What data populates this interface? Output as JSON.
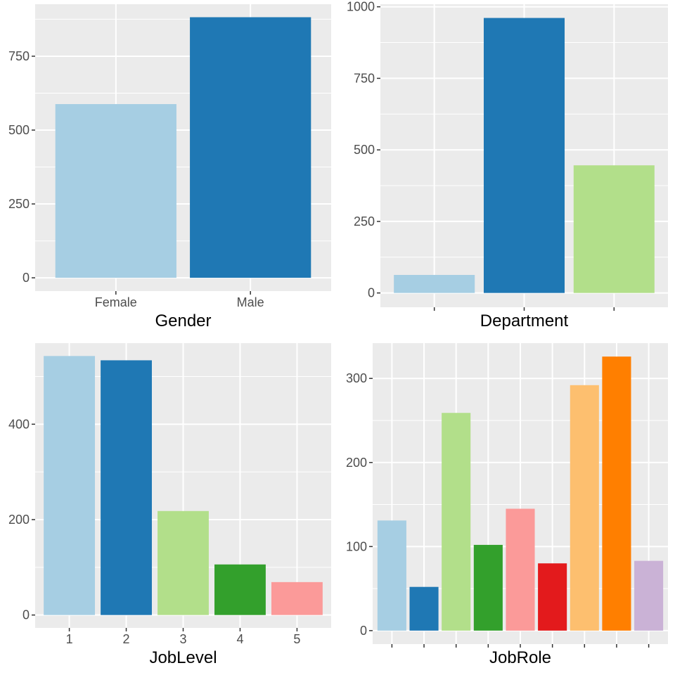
{
  "chart_data": [
    {
      "type": "bar",
      "xlabel": "Gender",
      "ylabel": "",
      "categories": [
        "Female",
        "Male"
      ],
      "show_category_labels": true,
      "values": [
        588,
        882
      ],
      "colors": [
        "#A6CEE3",
        "#1F78B4"
      ],
      "ylim": [
        -45,
        926
      ],
      "xlim": [
        0.4,
        2.6
      ],
      "yticks": [
        0,
        250,
        500,
        750
      ],
      "grid": true,
      "legend": "none"
    },
    {
      "type": "bar",
      "xlabel": "Department",
      "ylabel": "",
      "categories": [
        "",
        "",
        ""
      ],
      "show_category_labels": false,
      "values": [
        63,
        961,
        446
      ],
      "colors": [
        "#A6CEE3",
        "#1F78B4",
        "#B2DF8A"
      ],
      "ylim": [
        -50,
        1009
      ],
      "xlim": [
        0.4,
        3.6
      ],
      "yticks": [
        0,
        250,
        500,
        750,
        1000
      ],
      "grid": true,
      "legend": "none"
    },
    {
      "type": "bar",
      "xlabel": "JobLevel",
      "ylabel": "",
      "categories": [
        "1",
        "2",
        "3",
        "4",
        "5"
      ],
      "show_category_labels": true,
      "values": [
        543,
        534,
        218,
        106,
        69
      ],
      "colors": [
        "#A6CEE3",
        "#1F78B4",
        "#B2DF8A",
        "#33A02C",
        "#FB9A99"
      ],
      "ylim": [
        -27,
        570
      ],
      "xlim": [
        0.4,
        5.6
      ],
      "yticks": [
        0,
        200,
        400
      ],
      "grid": true,
      "legend": "none"
    },
    {
      "type": "bar",
      "xlabel": "JobRole",
      "ylabel": "",
      "categories": [
        "",
        "",
        "",
        "",
        "",
        "",
        "",
        "",
        ""
      ],
      "show_category_labels": false,
      "values": [
        131,
        52,
        259,
        102,
        145,
        80,
        292,
        326,
        83
      ],
      "colors": [
        "#A6CEE3",
        "#1F78B4",
        "#B2DF8A",
        "#33A02C",
        "#FB9A99",
        "#E31A1C",
        "#FDBF6F",
        "#FF7F00",
        "#CAB2D6"
      ],
      "ylim": [
        -16,
        342
      ],
      "xlim": [
        0.4,
        9.6
      ],
      "yticks": [
        0,
        100,
        200,
        300
      ],
      "grid": true,
      "legend": "none"
    }
  ]
}
